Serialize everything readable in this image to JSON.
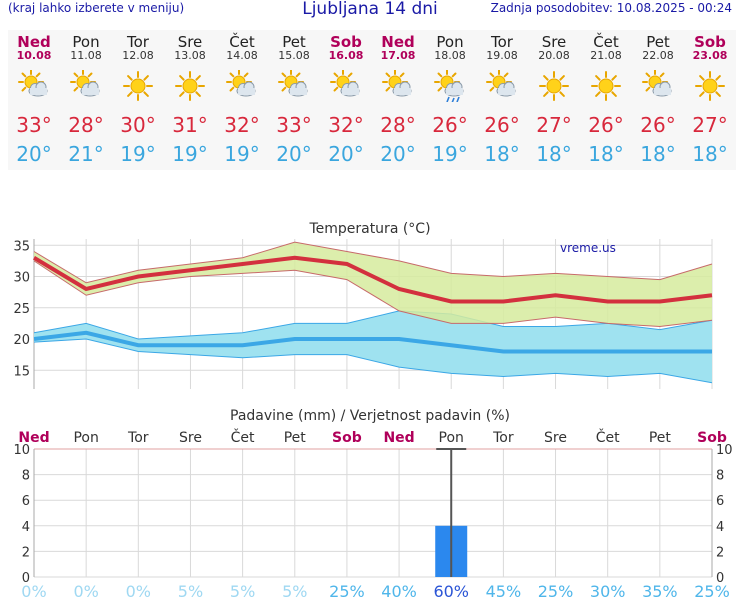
{
  "header": {
    "menu_hint": "(kraj lahko izberete v meniju)",
    "title": "Ljubljana 14 dni",
    "updated": "Zadnja posodobitev: 10.08.2025 - 00:24"
  },
  "days": [
    {
      "name": "Ned",
      "date": "10.08",
      "icon": "sun-cloud-icon",
      "max": "33°",
      "min": "20°",
      "weekend": true
    },
    {
      "name": "Pon",
      "date": "11.08",
      "icon": "sun-cloud-icon",
      "max": "28°",
      "min": "21°",
      "weekend": false
    },
    {
      "name": "Tor",
      "date": "12.08",
      "icon": "sun-icon",
      "max": "30°",
      "min": "19°",
      "weekend": false
    },
    {
      "name": "Sre",
      "date": "13.08",
      "icon": "sun-icon",
      "max": "31°",
      "min": "19°",
      "weekend": false
    },
    {
      "name": "Čet",
      "date": "14.08",
      "icon": "sun-cloud-icon",
      "max": "32°",
      "min": "19°",
      "weekend": false
    },
    {
      "name": "Pet",
      "date": "15.08",
      "icon": "sun-cloud-icon",
      "max": "33°",
      "min": "20°",
      "weekend": false
    },
    {
      "name": "Sob",
      "date": "16.08",
      "icon": "sun-cloud-icon",
      "max": "32°",
      "min": "20°",
      "weekend": true
    },
    {
      "name": "Ned",
      "date": "17.08",
      "icon": "sun-cloud-icon",
      "max": "28°",
      "min": "20°",
      "weekend": true
    },
    {
      "name": "Pon",
      "date": "18.08",
      "icon": "sun-cloud-rain-icon",
      "max": "26°",
      "min": "19°",
      "weekend": false
    },
    {
      "name": "Tor",
      "date": "19.08",
      "icon": "sun-cloud-icon",
      "max": "26°",
      "min": "18°",
      "weekend": false
    },
    {
      "name": "Sre",
      "date": "20.08",
      "icon": "sun-icon",
      "max": "27°",
      "min": "18°",
      "weekend": false
    },
    {
      "name": "Čet",
      "date": "21.08",
      "icon": "sun-icon",
      "max": "26°",
      "min": "18°",
      "weekend": false
    },
    {
      "name": "Pet",
      "date": "22.08",
      "icon": "sun-cloud-icon",
      "max": "26°",
      "min": "18°",
      "weekend": false
    },
    {
      "name": "Sob",
      "date": "23.08",
      "icon": "sun-icon",
      "max": "27°",
      "min": "18°",
      "weekend": true
    }
  ],
  "colors": {
    "max_line": "#d3303e",
    "min_line": "#3ba7e6",
    "max_band": "#d6eb9e",
    "min_band": "#9fe2f0",
    "precip_bar": "#2b88ee",
    "weekend": "#b0005a"
  },
  "chart_data": [
    {
      "type": "line",
      "title": "Temperatura (°C)",
      "watermark": "vreme.us",
      "ylim": [
        12,
        36
      ],
      "yticks": [
        "15",
        "20",
        "25",
        "30",
        "35"
      ],
      "grid": true,
      "series": [
        {
          "values": [
            33,
            28,
            30,
            31,
            32,
            33,
            32,
            28,
            26,
            26,
            27,
            26,
            26,
            27
          ]
        },
        {
          "values": [
            34,
            29,
            31,
            32,
            33,
            35.5,
            34,
            32.5,
            30.5,
            30,
            30.5,
            30,
            29.5,
            32
          ]
        },
        {
          "values": [
            32.5,
            27,
            29,
            30,
            30.5,
            31,
            29.5,
            24.5,
            22.5,
            22.5,
            23.5,
            22.5,
            22,
            23
          ]
        },
        {
          "values": [
            20,
            21,
            19,
            19,
            19,
            20,
            20,
            20,
            19,
            18,
            18,
            18,
            18,
            18
          ]
        },
        {
          "values": [
            21,
            22.5,
            20,
            20.5,
            21,
            22.5,
            22.5,
            24.5,
            24,
            22,
            22,
            22.5,
            21.5,
            23
          ]
        },
        {
          "values": [
            19.5,
            20,
            18,
            17.5,
            17,
            17.5,
            17.5,
            15.5,
            14.5,
            14,
            14.5,
            14,
            14.5,
            13
          ]
        }
      ]
    },
    {
      "type": "bar",
      "title": "Padavine (mm) / Verjetnost padavin (%)",
      "categories": [
        "Ned",
        "Pon",
        "Tor",
        "Sre",
        "Čet",
        "Pet",
        "Sob",
        "Ned",
        "Pon",
        "Tor",
        "Sre",
        "Čet",
        "Pet",
        "Sob"
      ],
      "values": [
        0,
        0,
        0,
        0,
        0,
        0,
        0,
        0,
        4,
        0,
        0,
        0,
        0,
        0
      ],
      "error_high": [
        null,
        null,
        null,
        null,
        null,
        null,
        null,
        null,
        10,
        null,
        null,
        null,
        null,
        null
      ],
      "probability": [
        "0%",
        "0%",
        "0%",
        "5%",
        "5%",
        "5%",
        "25%",
        "40%",
        "60%",
        "45%",
        "25%",
        "30%",
        "35%",
        "25%"
      ],
      "ylim": [
        0,
        10
      ],
      "yticks": [
        "0",
        "2",
        "4",
        "6",
        "8",
        "10"
      ],
      "grid": true
    }
  ]
}
